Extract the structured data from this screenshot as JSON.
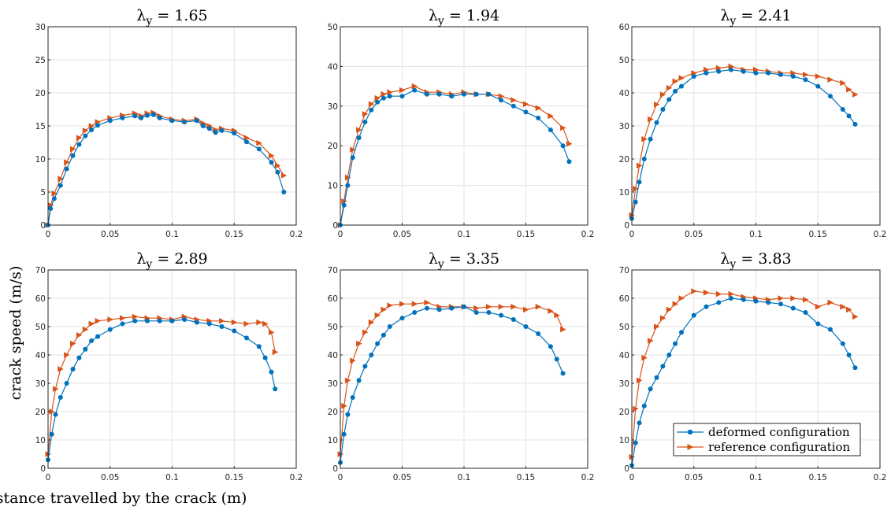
{
  "figure": {
    "ylabel": "crack speed (m/s)",
    "xlabel": "distance travelled by the crack (m)",
    "legend": {
      "position": "bottom-right of last panel",
      "entries": [
        {
          "label": "deformed configuration",
          "color": "#0072BD",
          "marker": "circle"
        },
        {
          "label": "reference configuration",
          "color": "#D95319",
          "marker": "triangle-right"
        }
      ]
    }
  },
  "chart_data": [
    {
      "type": "line",
      "title": "λ",
      "title_sub": "y",
      "title_value": " = 1.65",
      "xlim": [
        0,
        0.2
      ],
      "ylim": [
        0,
        30
      ],
      "grid": true,
      "xticks": [
        0,
        0.05,
        0.1,
        0.15,
        0.2
      ],
      "xtick_labels": [
        "0",
        "0.05",
        "0.1",
        "0.15",
        "0.2"
      ],
      "yticks": [
        0,
        5,
        10,
        15,
        20,
        25,
        30
      ],
      "ytick_labels": [
        "0",
        "5",
        "10",
        "15",
        "20",
        "25",
        "30"
      ],
      "series": [
        {
          "name": "deformed configuration",
          "color": "#0072BD",
          "x": [
            0,
            0.002,
            0.005,
            0.01,
            0.015,
            0.02,
            0.025,
            0.03,
            0.035,
            0.04,
            0.05,
            0.06,
            0.07,
            0.075,
            0.08,
            0.085,
            0.09,
            0.1,
            0.11,
            0.12,
            0.125,
            0.13,
            0.135,
            0.14,
            0.15,
            0.16,
            0.17,
            0.18,
            0.185,
            0.19
          ],
          "y": [
            0,
            2.5,
            4,
            6,
            8.5,
            10.5,
            12.2,
            13.5,
            14.4,
            15.1,
            15.8,
            16.2,
            16.5,
            16.2,
            16.6,
            16.7,
            16.2,
            15.8,
            15.6,
            15.8,
            15,
            14.6,
            14,
            14.3,
            13.9,
            12.6,
            11.5,
            9.5,
            8,
            5
          ]
        },
        {
          "name": "reference configuration",
          "color": "#D95319",
          "x": [
            0,
            0.002,
            0.005,
            0.01,
            0.015,
            0.02,
            0.025,
            0.03,
            0.035,
            0.04,
            0.05,
            0.06,
            0.07,
            0.075,
            0.08,
            0.085,
            0.09,
            0.1,
            0.11,
            0.12,
            0.125,
            0.13,
            0.135,
            0.14,
            0.15,
            0.16,
            0.17,
            0.18,
            0.185,
            0.19
          ],
          "y": [
            0,
            3,
            4.8,
            7,
            9.5,
            11.5,
            13.2,
            14.3,
            15,
            15.6,
            16.2,
            16.6,
            16.9,
            16.5,
            16.9,
            17,
            16.5,
            16,
            15.8,
            16,
            15.4,
            15,
            14.4,
            14.6,
            14.3,
            13.2,
            12.4,
            10.5,
            9,
            7.5
          ]
        }
      ]
    },
    {
      "type": "line",
      "title": "λ",
      "title_sub": "y",
      "title_value": " = 1.94",
      "xlim": [
        0,
        0.2
      ],
      "ylim": [
        0,
        50
      ],
      "grid": true,
      "xticks": [
        0,
        0.05,
        0.1,
        0.15,
        0.2
      ],
      "xtick_labels": [
        "0",
        "0.05",
        "0.1",
        "0.15",
        "0.2"
      ],
      "yticks": [
        0,
        10,
        20,
        30,
        40,
        50
      ],
      "ytick_labels": [
        "0",
        "10",
        "20",
        "30",
        "40",
        "50"
      ],
      "series": [
        {
          "name": "deformed configuration",
          "color": "#0072BD",
          "x": [
            0,
            0.003,
            0.006,
            0.01,
            0.015,
            0.02,
            0.025,
            0.03,
            0.035,
            0.04,
            0.05,
            0.06,
            0.07,
            0.08,
            0.09,
            0.1,
            0.11,
            0.12,
            0.13,
            0.14,
            0.15,
            0.16,
            0.17,
            0.18,
            0.185
          ],
          "y": [
            0,
            5,
            10,
            17,
            22,
            26,
            29,
            31,
            32,
            32.5,
            32.5,
            34,
            33,
            33,
            32.5,
            33,
            33,
            33,
            31.5,
            30,
            28.5,
            27,
            24,
            20,
            16
          ]
        },
        {
          "name": "reference configuration",
          "color": "#D95319",
          "x": [
            0,
            0.003,
            0.006,
            0.01,
            0.015,
            0.02,
            0.025,
            0.03,
            0.035,
            0.04,
            0.05,
            0.06,
            0.07,
            0.08,
            0.09,
            0.1,
            0.11,
            0.12,
            0.13,
            0.14,
            0.15,
            0.16,
            0.17,
            0.18,
            0.185
          ],
          "y": [
            0,
            6,
            12,
            19,
            24,
            28,
            30.5,
            32,
            33,
            33.5,
            34,
            35,
            33.5,
            33.5,
            33,
            33.5,
            33,
            33,
            32.5,
            31.5,
            30.5,
            29.5,
            27.5,
            24.5,
            20.5
          ]
        }
      ]
    },
    {
      "type": "line",
      "title": "λ",
      "title_sub": "y",
      "title_value": " = 2.41",
      "xlim": [
        0,
        0.2
      ],
      "ylim": [
        0,
        60
      ],
      "grid": true,
      "xticks": [
        0,
        0.05,
        0.1,
        0.15,
        0.2
      ],
      "xtick_labels": [
        "0",
        "0.05",
        "0.1",
        "0.15",
        "0.2"
      ],
      "yticks": [
        0,
        10,
        20,
        30,
        40,
        50,
        60
      ],
      "ytick_labels": [
        "0",
        "10",
        "20",
        "30",
        "40",
        "50",
        "60"
      ],
      "series": [
        {
          "name": "deformed configuration",
          "color": "#0072BD",
          "x": [
            0,
            0.003,
            0.006,
            0.01,
            0.015,
            0.02,
            0.025,
            0.03,
            0.035,
            0.04,
            0.05,
            0.06,
            0.07,
            0.08,
            0.09,
            0.1,
            0.11,
            0.12,
            0.13,
            0.14,
            0.15,
            0.16,
            0.17,
            0.175,
            0.18
          ],
          "y": [
            2,
            7,
            13,
            20,
            26,
            31,
            35,
            38,
            40.5,
            42,
            45,
            46,
            46.5,
            47,
            46.5,
            46,
            46,
            45.5,
            45,
            44,
            42,
            39,
            35,
            33,
            30.5
          ]
        },
        {
          "name": "reference configuration",
          "color": "#D95319",
          "x": [
            0,
            0.003,
            0.006,
            0.01,
            0.015,
            0.02,
            0.025,
            0.03,
            0.035,
            0.04,
            0.05,
            0.06,
            0.07,
            0.08,
            0.09,
            0.1,
            0.11,
            0.12,
            0.13,
            0.14,
            0.15,
            0.16,
            0.17,
            0.175,
            0.18
          ],
          "y": [
            3,
            11,
            18,
            26,
            32,
            36.5,
            39.5,
            41.5,
            43.5,
            44.5,
            46,
            47,
            47.5,
            48,
            47,
            47,
            46.5,
            46,
            46,
            45.5,
            45,
            44,
            43,
            41,
            39.5
          ]
        }
      ]
    },
    {
      "type": "line",
      "title": "λ",
      "title_sub": "y",
      "title_value": " = 2.89",
      "xlim": [
        0,
        0.2
      ],
      "ylim": [
        0,
        70
      ],
      "grid": true,
      "xticks": [
        0,
        0.05,
        0.1,
        0.15,
        0.2
      ],
      "xtick_labels": [
        "0",
        "0.05",
        "0.1",
        "0.15",
        "0.2"
      ],
      "yticks": [
        0,
        10,
        20,
        30,
        40,
        50,
        60,
        70
      ],
      "ytick_labels": [
        "0",
        "10",
        "20",
        "30",
        "40",
        "50",
        "60",
        "70"
      ],
      "series": [
        {
          "name": "deformed configuration",
          "color": "#0072BD",
          "x": [
            0,
            0.003,
            0.006,
            0.01,
            0.015,
            0.02,
            0.025,
            0.03,
            0.035,
            0.04,
            0.05,
            0.06,
            0.07,
            0.08,
            0.09,
            0.1,
            0.11,
            0.12,
            0.13,
            0.14,
            0.15,
            0.16,
            0.17,
            0.175,
            0.18,
            0.183
          ],
          "y": [
            3,
            12,
            19,
            25,
            30,
            35,
            39,
            42,
            45,
            46.5,
            49,
            51,
            52,
            52,
            52,
            52,
            52.5,
            51.5,
            51,
            50,
            48.5,
            46,
            43,
            39,
            34,
            28
          ]
        },
        {
          "name": "reference configuration",
          "color": "#D95319",
          "x": [
            0,
            0.003,
            0.006,
            0.01,
            0.015,
            0.02,
            0.025,
            0.03,
            0.035,
            0.04,
            0.05,
            0.06,
            0.07,
            0.08,
            0.09,
            0.1,
            0.11,
            0.12,
            0.13,
            0.14,
            0.15,
            0.16,
            0.17,
            0.175,
            0.18,
            0.183
          ],
          "y": [
            5,
            20,
            28,
            35,
            40,
            44,
            47,
            49,
            51,
            52,
            52.5,
            53,
            53.5,
            53,
            53,
            52.5,
            53.5,
            52.5,
            52,
            52,
            51.5,
            51,
            51.5,
            51,
            48,
            41
          ]
        }
      ]
    },
    {
      "type": "line",
      "title": "λ",
      "title_sub": "y",
      "title_value": " = 3.35",
      "xlim": [
        0,
        0.2
      ],
      "ylim": [
        0,
        70
      ],
      "grid": true,
      "xticks": [
        0,
        0.05,
        0.1,
        0.15,
        0.2
      ],
      "xtick_labels": [
        "0",
        "0.05",
        "0.1",
        "0.15",
        "0.2"
      ],
      "yticks": [
        0,
        10,
        20,
        30,
        40,
        50,
        60,
        70
      ],
      "ytick_labels": [
        "0",
        "10",
        "20",
        "30",
        "40",
        "50",
        "60",
        "70"
      ],
      "series": [
        {
          "name": "deformed configuration",
          "color": "#0072BD",
          "x": [
            0,
            0.003,
            0.006,
            0.01,
            0.015,
            0.02,
            0.025,
            0.03,
            0.035,
            0.04,
            0.05,
            0.06,
            0.07,
            0.08,
            0.09,
            0.1,
            0.11,
            0.12,
            0.13,
            0.14,
            0.15,
            0.16,
            0.17,
            0.175,
            0.18
          ],
          "y": [
            2,
            12,
            19,
            25,
            31,
            36,
            40,
            44,
            47,
            50,
            53,
            55,
            56.5,
            56,
            56.5,
            57,
            55,
            55,
            54,
            52.5,
            50,
            47.5,
            43,
            38.5,
            33.5
          ]
        },
        {
          "name": "reference configuration",
          "color": "#D95319",
          "x": [
            0,
            0.003,
            0.006,
            0.01,
            0.015,
            0.02,
            0.025,
            0.03,
            0.035,
            0.04,
            0.05,
            0.06,
            0.07,
            0.08,
            0.09,
            0.1,
            0.11,
            0.12,
            0.13,
            0.14,
            0.15,
            0.16,
            0.17,
            0.175,
            0.18
          ],
          "y": [
            5,
            22,
            31,
            38,
            44,
            48,
            51.5,
            54,
            56,
            57.5,
            58,
            58,
            58.5,
            57,
            57,
            57,
            56.5,
            57,
            57,
            57,
            56,
            57,
            55.5,
            54,
            49
          ]
        }
      ]
    },
    {
      "type": "line",
      "title": "λ",
      "title_sub": "y",
      "title_value": " = 3.83",
      "xlim": [
        0,
        0.2
      ],
      "ylim": [
        0,
        70
      ],
      "grid": true,
      "xticks": [
        0,
        0.05,
        0.1,
        0.15,
        0.2
      ],
      "xtick_labels": [
        "0",
        "0.05",
        "0.1",
        "0.15",
        "0.2"
      ],
      "yticks": [
        0,
        10,
        20,
        30,
        40,
        50,
        60,
        70
      ],
      "ytick_labels": [
        "0",
        "10",
        "20",
        "30",
        "40",
        "50",
        "60",
        "70"
      ],
      "series": [
        {
          "name": "deformed configuration",
          "color": "#0072BD",
          "x": [
            0,
            0.003,
            0.006,
            0.01,
            0.015,
            0.02,
            0.025,
            0.03,
            0.035,
            0.04,
            0.05,
            0.06,
            0.07,
            0.08,
            0.09,
            0.1,
            0.11,
            0.12,
            0.13,
            0.14,
            0.15,
            0.16,
            0.17,
            0.175,
            0.18
          ],
          "y": [
            1,
            9,
            16,
            22,
            28,
            32,
            36,
            40,
            44,
            48,
            54,
            57,
            58.5,
            60,
            59.5,
            59,
            58.5,
            58,
            56.5,
            55,
            51,
            49,
            44,
            40,
            35.5
          ]
        },
        {
          "name": "reference configuration",
          "color": "#D95319",
          "x": [
            0,
            0.003,
            0.006,
            0.01,
            0.015,
            0.02,
            0.025,
            0.03,
            0.035,
            0.04,
            0.05,
            0.06,
            0.07,
            0.08,
            0.09,
            0.1,
            0.11,
            0.12,
            0.13,
            0.14,
            0.15,
            0.16,
            0.17,
            0.175,
            0.18
          ],
          "y": [
            4,
            21,
            31,
            39,
            45,
            50,
            53,
            56,
            58,
            60,
            62.5,
            62,
            61.5,
            61.5,
            60.5,
            60,
            59.5,
            60,
            60,
            59.5,
            57,
            58.5,
            57,
            56,
            53.5
          ]
        }
      ]
    }
  ]
}
